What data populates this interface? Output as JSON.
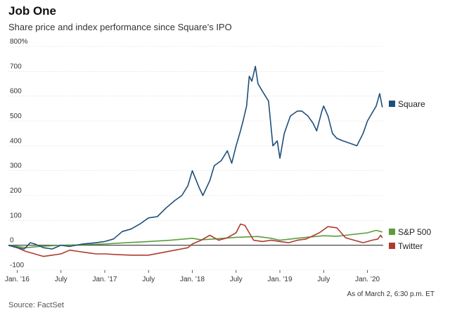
{
  "header": {
    "title": "Job One",
    "subtitle": "Share price and index performance since Square’s IPO"
  },
  "footer": {
    "source": "Source: FactSet",
    "note": "As of March 2, 6:30 p.m. ET"
  },
  "chart_data": {
    "type": "line",
    "title": "Job One",
    "subtitle": "Share price and index performance since Square’s IPO",
    "xlabel": "",
    "ylabel": "",
    "xlim": [
      2015.9,
      2020.18
    ],
    "ylim": [
      -100,
      800
    ],
    "y_ticks": [
      {
        "value": 800,
        "label": "800%"
      },
      {
        "value": 700,
        "label": "700"
      },
      {
        "value": 600,
        "label": "600"
      },
      {
        "value": 500,
        "label": "500"
      },
      {
        "value": 400,
        "label": "400"
      },
      {
        "value": 300,
        "label": "300"
      },
      {
        "value": 200,
        "label": "200"
      },
      {
        "value": 100,
        "label": "100"
      },
      {
        "value": 0,
        "label": "0"
      },
      {
        "value": -100,
        "label": "-100"
      }
    ],
    "x_ticks": [
      {
        "value": 2016.0,
        "label": "Jan. ’16"
      },
      {
        "value": 2016.5,
        "label": "July"
      },
      {
        "value": 2017.0,
        "label": "Jan. ’17"
      },
      {
        "value": 2017.5,
        "label": "July"
      },
      {
        "value": 2018.0,
        "label": "Jan. ’18"
      },
      {
        "value": 2018.5,
        "label": "July"
      },
      {
        "value": 2019.0,
        "label": "Jan. ’19"
      },
      {
        "value": 2019.5,
        "label": "July"
      },
      {
        "value": 2020.0,
        "label": "Jan. ’20"
      }
    ],
    "grid": "horizontal",
    "legend_position": "right",
    "series": [
      {
        "name": "Square",
        "color": "#1f4e79",
        "x": [
          2015.9,
          2016.0,
          2016.08,
          2016.15,
          2016.2,
          2016.3,
          2016.4,
          2016.5,
          2016.6,
          2016.75,
          2016.9,
          2017.0,
          2017.1,
          2017.2,
          2017.3,
          2017.4,
          2017.5,
          2017.6,
          2017.7,
          2017.8,
          2017.88,
          2017.95,
          2018.0,
          2018.08,
          2018.12,
          2018.2,
          2018.25,
          2018.33,
          2018.4,
          2018.45,
          2018.5,
          2018.55,
          2018.58,
          2018.62,
          2018.65,
          2018.68,
          2018.72,
          2018.75,
          2018.8,
          2018.87,
          2018.92,
          2018.97,
          2019.0,
          2019.05,
          2019.12,
          2019.2,
          2019.25,
          2019.32,
          2019.38,
          2019.42,
          2019.48,
          2019.5,
          2019.55,
          2019.6,
          2019.65,
          2019.72,
          2019.8,
          2019.88,
          2019.95,
          2020.0,
          2020.05,
          2020.1,
          2020.14,
          2020.17
        ],
        "values": [
          0,
          -10,
          -15,
          10,
          5,
          -10,
          -15,
          0,
          -5,
          5,
          10,
          15,
          25,
          55,
          65,
          85,
          110,
          115,
          150,
          180,
          200,
          240,
          300,
          230,
          200,
          260,
          320,
          340,
          380,
          330,
          400,
          460,
          500,
          560,
          680,
          660,
          720,
          650,
          620,
          580,
          400,
          420,
          350,
          450,
          520,
          540,
          540,
          520,
          490,
          460,
          540,
          560,
          520,
          450,
          430,
          420,
          410,
          400,
          450,
          500,
          530,
          560,
          610,
          555
        ]
      },
      {
        "name": "S&P 500",
        "color": "#5a9e3c",
        "x": [
          2015.9,
          2016.0,
          2016.1,
          2016.25,
          2016.5,
          2016.75,
          2017.0,
          2017.25,
          2017.5,
          2017.75,
          2018.0,
          2018.1,
          2018.25,
          2018.5,
          2018.75,
          2018.9,
          2019.0,
          2019.25,
          2019.5,
          2019.65,
          2019.75,
          2020.0,
          2020.1,
          2020.15,
          2020.17
        ],
        "values": [
          0,
          -5,
          -10,
          -5,
          0,
          2,
          5,
          10,
          15,
          20,
          28,
          22,
          25,
          32,
          35,
          28,
          20,
          30,
          38,
          36,
          40,
          50,
          60,
          55,
          53
        ]
      },
      {
        "name": "Twitter",
        "color": "#b03a2e",
        "x": [
          2015.9,
          2016.0,
          2016.1,
          2016.2,
          2016.3,
          2016.4,
          2016.5,
          2016.6,
          2016.7,
          2016.8,
          2016.9,
          2017.0,
          2017.15,
          2017.3,
          2017.5,
          2017.65,
          2017.8,
          2017.95,
          2018.0,
          2018.1,
          2018.2,
          2018.3,
          2018.4,
          2018.5,
          2018.55,
          2018.6,
          2018.7,
          2018.8,
          2018.9,
          2019.0,
          2019.1,
          2019.2,
          2019.3,
          2019.45,
          2019.55,
          2019.65,
          2019.75,
          2019.85,
          2019.95,
          2020.05,
          2020.12,
          2020.15,
          2020.17
        ],
        "values": [
          0,
          -10,
          -25,
          -35,
          -45,
          -40,
          -35,
          -20,
          -25,
          -30,
          -35,
          -35,
          -38,
          -40,
          -40,
          -30,
          -20,
          -10,
          5,
          20,
          40,
          20,
          30,
          50,
          85,
          80,
          20,
          15,
          20,
          15,
          10,
          20,
          25,
          50,
          75,
          70,
          30,
          20,
          10,
          20,
          25,
          40,
          30
        ]
      }
    ]
  }
}
